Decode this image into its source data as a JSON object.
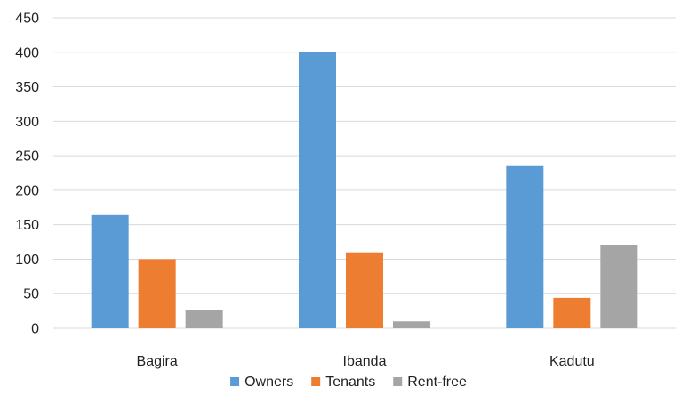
{
  "chart_data": {
    "type": "bar",
    "title": "",
    "xlabel": "",
    "ylabel": "",
    "categories": [
      "Bagira",
      "Ibanda",
      "Kadutu"
    ],
    "series": [
      {
        "name": "Owners",
        "values": [
          164,
          400,
          235
        ],
        "color": "#5b9bd5"
      },
      {
        "name": "Tenants",
        "values": [
          100,
          110,
          44
        ],
        "color": "#ed7d31"
      },
      {
        "name": "Rent-free",
        "values": [
          26,
          10,
          121
        ],
        "color": "#a5a5a5"
      }
    ],
    "ylim": [
      0,
      450
    ],
    "yticks": [
      0,
      50,
      100,
      150,
      200,
      250,
      300,
      350,
      400,
      450
    ],
    "grid": true,
    "legend": "bottom"
  }
}
